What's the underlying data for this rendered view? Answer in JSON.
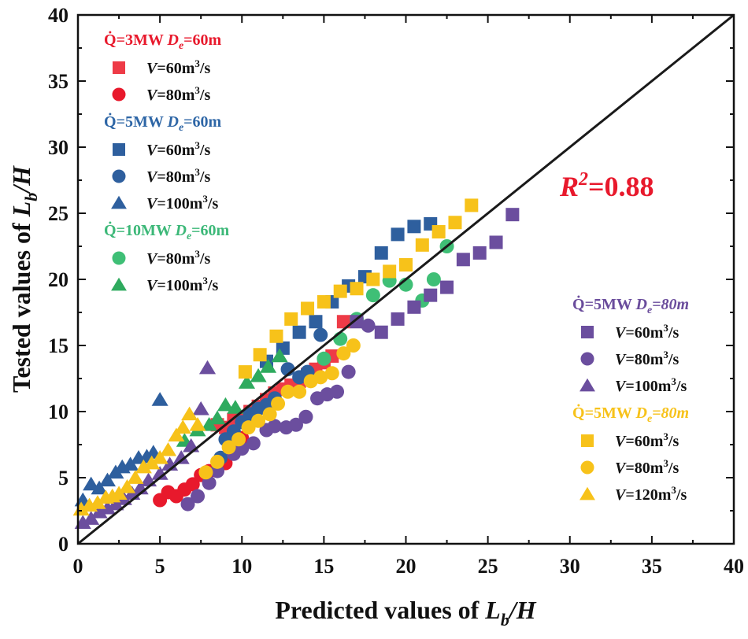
{
  "chart_data": {
    "type": "scatter",
    "title": "",
    "xlabel": {
      "prefix": "Predicted values of ",
      "var": "L",
      "sub": "b",
      "suffix": "/H"
    },
    "ylabel": {
      "prefix": "Tested values of ",
      "var": "L",
      "sub": "b",
      "suffix": "/H"
    },
    "xlim": [
      0,
      40
    ],
    "ylim": [
      0,
      40
    ],
    "xticks": [
      "0",
      "5",
      "10",
      "15",
      "20",
      "25",
      "30",
      "35",
      "40"
    ],
    "yticks": [
      "0",
      "5",
      "10",
      "15",
      "20",
      "25",
      "30",
      "35",
      "40"
    ],
    "grid": false,
    "reference_line": {
      "from": [
        0,
        0
      ],
      "to": [
        40,
        40
      ],
      "color": "#1a1a1a"
    },
    "annotation": {
      "r": "R",
      "sup": "2",
      "value": "=0.88",
      "color": "#e8192c"
    },
    "groups": [
      {
        "id": "g3",
        "heading": {
          "q": "Q̇",
          "rest": "=3MW ",
          "de": "D",
          "desub": "e",
          "deval": "=60m"
        },
        "color": "#e8192c",
        "legend_loc": "upper-left",
        "series": [
          {
            "label_v": "V",
            "label_eq": "=60m",
            "label_sup": "3",
            "label_unit": "/s",
            "marker": "square",
            "color": "#ee3b47",
            "points": [
              [
                8.5,
                9.0
              ],
              [
                9.0,
                8.8
              ],
              [
                9.5,
                9.4
              ],
              [
                10.0,
                9.6
              ],
              [
                10.5,
                10.0
              ],
              [
                11.0,
                10.4
              ],
              [
                11.5,
                10.9
              ],
              [
                12.0,
                11.4
              ],
              [
                12.5,
                11.7
              ],
              [
                13.0,
                12.0
              ],
              [
                13.5,
                12.3
              ],
              [
                14.0,
                12.8
              ],
              [
                14.5,
                13.2
              ],
              [
                15.0,
                13.7
              ],
              [
                15.5,
                14.2
              ],
              [
                16.2,
                16.8
              ]
            ]
          },
          {
            "label_v": "V",
            "label_eq": "=80m",
            "label_sup": "3",
            "label_unit": "/s",
            "marker": "circle",
            "color": "#e8192c",
            "points": [
              [
                5.0,
                3.3
              ],
              [
                5.5,
                3.9
              ],
              [
                6.0,
                3.6
              ],
              [
                6.5,
                4.1
              ],
              [
                7.0,
                4.5
              ],
              [
                7.5,
                5.2
              ],
              [
                8.0,
                5.5
              ],
              [
                8.5,
                5.8
              ],
              [
                9.0,
                6.1
              ],
              [
                9.5,
                7.0
              ],
              [
                10.0,
                8.0
              ]
            ]
          }
        ]
      },
      {
        "id": "g5a",
        "heading": {
          "q": "Q̇",
          "rest": "=5MW ",
          "de": "D",
          "desub": "e",
          "deval": "=60m"
        },
        "color": "#2e66a6",
        "legend_loc": "upper-left",
        "series": [
          {
            "label_v": "V",
            "label_eq": "=60m",
            "label_sup": "3",
            "label_unit": "/s",
            "marker": "square",
            "color": "#2e5f9e",
            "points": [
              [
                11.5,
                13.8
              ],
              [
                12.5,
                14.8
              ],
              [
                13.5,
                16.0
              ],
              [
                14.5,
                16.8
              ],
              [
                15.5,
                18.3
              ],
              [
                16.5,
                19.5
              ],
              [
                17.5,
                20.2
              ],
              [
                18.5,
                22.0
              ],
              [
                19.5,
                23.4
              ],
              [
                20.5,
                24.0
              ],
              [
                21.5,
                24.2
              ]
            ]
          },
          {
            "label_v": "V",
            "label_eq": "=80m",
            "label_sup": "3",
            "label_unit": "/s",
            "marker": "circle",
            "color": "#2e5f9e",
            "points": [
              [
                8.7,
                6.5
              ],
              [
                9.0,
                7.9
              ],
              [
                9.5,
                8.5
              ],
              [
                10.0,
                9.2
              ],
              [
                10.5,
                9.8
              ],
              [
                11.0,
                10.2
              ],
              [
                11.5,
                10.5
              ],
              [
                12.0,
                11.0
              ],
              [
                12.8,
                13.2
              ],
              [
                13.5,
                12.6
              ],
              [
                14.0,
                13.0
              ],
              [
                14.8,
                15.8
              ]
            ]
          },
          {
            "label_v": "V",
            "label_eq": "=100m",
            "label_sup": "3",
            "label_unit": "/s",
            "marker": "triangle",
            "color": "#2e5f9e",
            "points": [
              [
                0.3,
                3.3
              ],
              [
                0.8,
                4.5
              ],
              [
                1.3,
                4.2
              ],
              [
                1.8,
                4.8
              ],
              [
                2.3,
                5.4
              ],
              [
                2.7,
                5.8
              ],
              [
                3.2,
                6.0
              ],
              [
                3.7,
                6.5
              ],
              [
                4.2,
                6.6
              ],
              [
                4.6,
                6.9
              ],
              [
                5.0,
                10.9
              ]
            ]
          }
        ]
      },
      {
        "id": "g10",
        "heading": {
          "q": "Q̇",
          "rest": "=10MW ",
          "de": "D",
          "desub": "e",
          "deval": "=60m"
        },
        "color": "#3cb878",
        "legend_loc": "upper-left",
        "series": [
          {
            "label_v": "V",
            "label_eq": "=80m",
            "label_sup": "3",
            "label_unit": "/s",
            "marker": "circle",
            "color": "#3fbf76",
            "points": [
              [
                15.0,
                14.0
              ],
              [
                16.0,
                15.5
              ],
              [
                17.0,
                17.0
              ],
              [
                18.0,
                18.8
              ],
              [
                19.0,
                19.9
              ],
              [
                20.0,
                19.6
              ],
              [
                21.0,
                18.4
              ],
              [
                21.7,
                20.0
              ],
              [
                22.5,
                22.5
              ]
            ]
          },
          {
            "label_v": "V",
            "label_eq": "=100m",
            "label_sup": "3",
            "label_unit": "/s",
            "marker": "triangle",
            "color": "#2eaa5e",
            "points": [
              [
                6.5,
                7.8
              ],
              [
                7.3,
                8.6
              ],
              [
                8.0,
                9.0
              ],
              [
                8.5,
                9.5
              ],
              [
                9.0,
                10.5
              ],
              [
                9.6,
                10.3
              ],
              [
                10.3,
                12.2
              ],
              [
                11.0,
                12.7
              ],
              [
                11.6,
                13.4
              ],
              [
                12.3,
                14.2
              ]
            ]
          }
        ]
      },
      {
        "id": "g5b",
        "heading": {
          "q": "Q̇",
          "rest": "=5MW ",
          "de": "D",
          "desub": "e",
          "deval": "=80m"
        },
        "color": "#6a4c9c",
        "legend_loc": "right",
        "series": [
          {
            "label_v": "V",
            "label_eq": "=60m",
            "label_sup": "3",
            "label_unit": "/s",
            "marker": "square",
            "color": "#6b4e9e",
            "points": [
              [
                17.0,
                16.8
              ],
              [
                18.5,
                16.0
              ],
              [
                19.5,
                17.0
              ],
              [
                20.5,
                17.9
              ],
              [
                21.5,
                18.8
              ],
              [
                22.5,
                19.4
              ],
              [
                23.5,
                21.5
              ],
              [
                24.5,
                22.0
              ],
              [
                25.5,
                22.8
              ],
              [
                26.5,
                24.9
              ]
            ]
          },
          {
            "label_v": "V",
            "label_eq": "=80m",
            "label_sup": "3",
            "label_unit": "/s",
            "marker": "circle",
            "color": "#6b4e9e",
            "points": [
              [
                6.7,
                3.0
              ],
              [
                7.3,
                3.6
              ],
              [
                8.0,
                4.6
              ],
              [
                8.5,
                5.5
              ],
              [
                9.5,
                6.8
              ],
              [
                10.0,
                7.2
              ],
              [
                10.7,
                7.6
              ],
              [
                11.5,
                8.6
              ],
              [
                12.0,
                8.9
              ],
              [
                12.7,
                8.8
              ],
              [
                13.3,
                9.0
              ],
              [
                13.9,
                9.6
              ],
              [
                14.6,
                11.0
              ],
              [
                15.2,
                11.3
              ],
              [
                15.8,
                11.5
              ],
              [
                16.5,
                13.0
              ],
              [
                17.7,
                16.5
              ]
            ]
          },
          {
            "label_v": "V",
            "label_eq": "=100m",
            "label_sup": "3",
            "label_unit": "/s",
            "marker": "triangle",
            "color": "#6b4e9e",
            "points": [
              [
                0.3,
                1.6
              ],
              [
                0.8,
                1.9
              ],
              [
                1.3,
                2.4
              ],
              [
                1.8,
                2.7
              ],
              [
                2.3,
                3.0
              ],
              [
                2.8,
                3.4
              ],
              [
                3.3,
                3.8
              ],
              [
                3.8,
                4.2
              ],
              [
                4.3,
                4.8
              ],
              [
                5.0,
                5.3
              ],
              [
                5.6,
                6.0
              ],
              [
                6.3,
                6.5
              ],
              [
                6.9,
                7.4
              ],
              [
                7.5,
                10.2
              ],
              [
                7.9,
                13.3
              ]
            ]
          }
        ]
      },
      {
        "id": "g5c",
        "heading": {
          "q": "Q̇",
          "rest": "=5MW ",
          "de": "D",
          "desub": "e",
          "deval": "=80m"
        },
        "color": "#f7c21a",
        "legend_loc": "right",
        "series": [
          {
            "label_v": "V",
            "label_eq": "=60m",
            "label_sup": "3",
            "label_unit": "/s",
            "marker": "square",
            "color": "#f7c21a",
            "points": [
              [
                10.2,
                13.0
              ],
              [
                11.1,
                14.3
              ],
              [
                12.1,
                15.7
              ],
              [
                13.0,
                17.0
              ],
              [
                14.0,
                17.8
              ],
              [
                15.0,
                18.3
              ],
              [
                16.0,
                19.1
              ],
              [
                17.0,
                19.3
              ],
              [
                18.0,
                20.0
              ],
              [
                19.0,
                20.6
              ],
              [
                20.0,
                21.1
              ],
              [
                21.0,
                22.6
              ],
              [
                22.0,
                23.6
              ],
              [
                23.0,
                24.3
              ],
              [
                24.0,
                25.6
              ]
            ]
          },
          {
            "label_v": "V",
            "label_eq": "=80m",
            "label_sup": "3",
            "label_unit": "/s",
            "marker": "circle",
            "color": "#f7c21a",
            "points": [
              [
                7.8,
                5.4
              ],
              [
                8.5,
                6.2
              ],
              [
                9.2,
                7.3
              ],
              [
                9.8,
                7.9
              ],
              [
                10.4,
                8.8
              ],
              [
                11.0,
                9.3
              ],
              [
                11.7,
                9.8
              ],
              [
                12.2,
                10.6
              ],
              [
                12.8,
                11.5
              ],
              [
                13.5,
                11.5
              ],
              [
                14.2,
                12.3
              ],
              [
                14.8,
                12.6
              ],
              [
                15.5,
                12.9
              ],
              [
                16.2,
                14.4
              ],
              [
                16.8,
                15.0
              ]
            ]
          },
          {
            "label_v": "V",
            "label_eq": "=120m",
            "label_sup": "3",
            "label_unit": "/s",
            "marker": "triangle",
            "color": "#f7c21a",
            "points": [
              [
                0.2,
                2.6
              ],
              [
                0.7,
                2.9
              ],
              [
                1.2,
                3.1
              ],
              [
                1.7,
                3.5
              ],
              [
                2.1,
                3.6
              ],
              [
                2.5,
                3.8
              ],
              [
                3.0,
                4.3
              ],
              [
                3.5,
                5.0
              ],
              [
                4.0,
                5.8
              ],
              [
                4.5,
                6.1
              ],
              [
                5.0,
                6.5
              ],
              [
                5.5,
                7.1
              ],
              [
                6.0,
                8.2
              ],
              [
                6.4,
                8.8
              ],
              [
                6.8,
                9.8
              ],
              [
                7.3,
                9.0
              ]
            ]
          }
        ]
      }
    ]
  }
}
